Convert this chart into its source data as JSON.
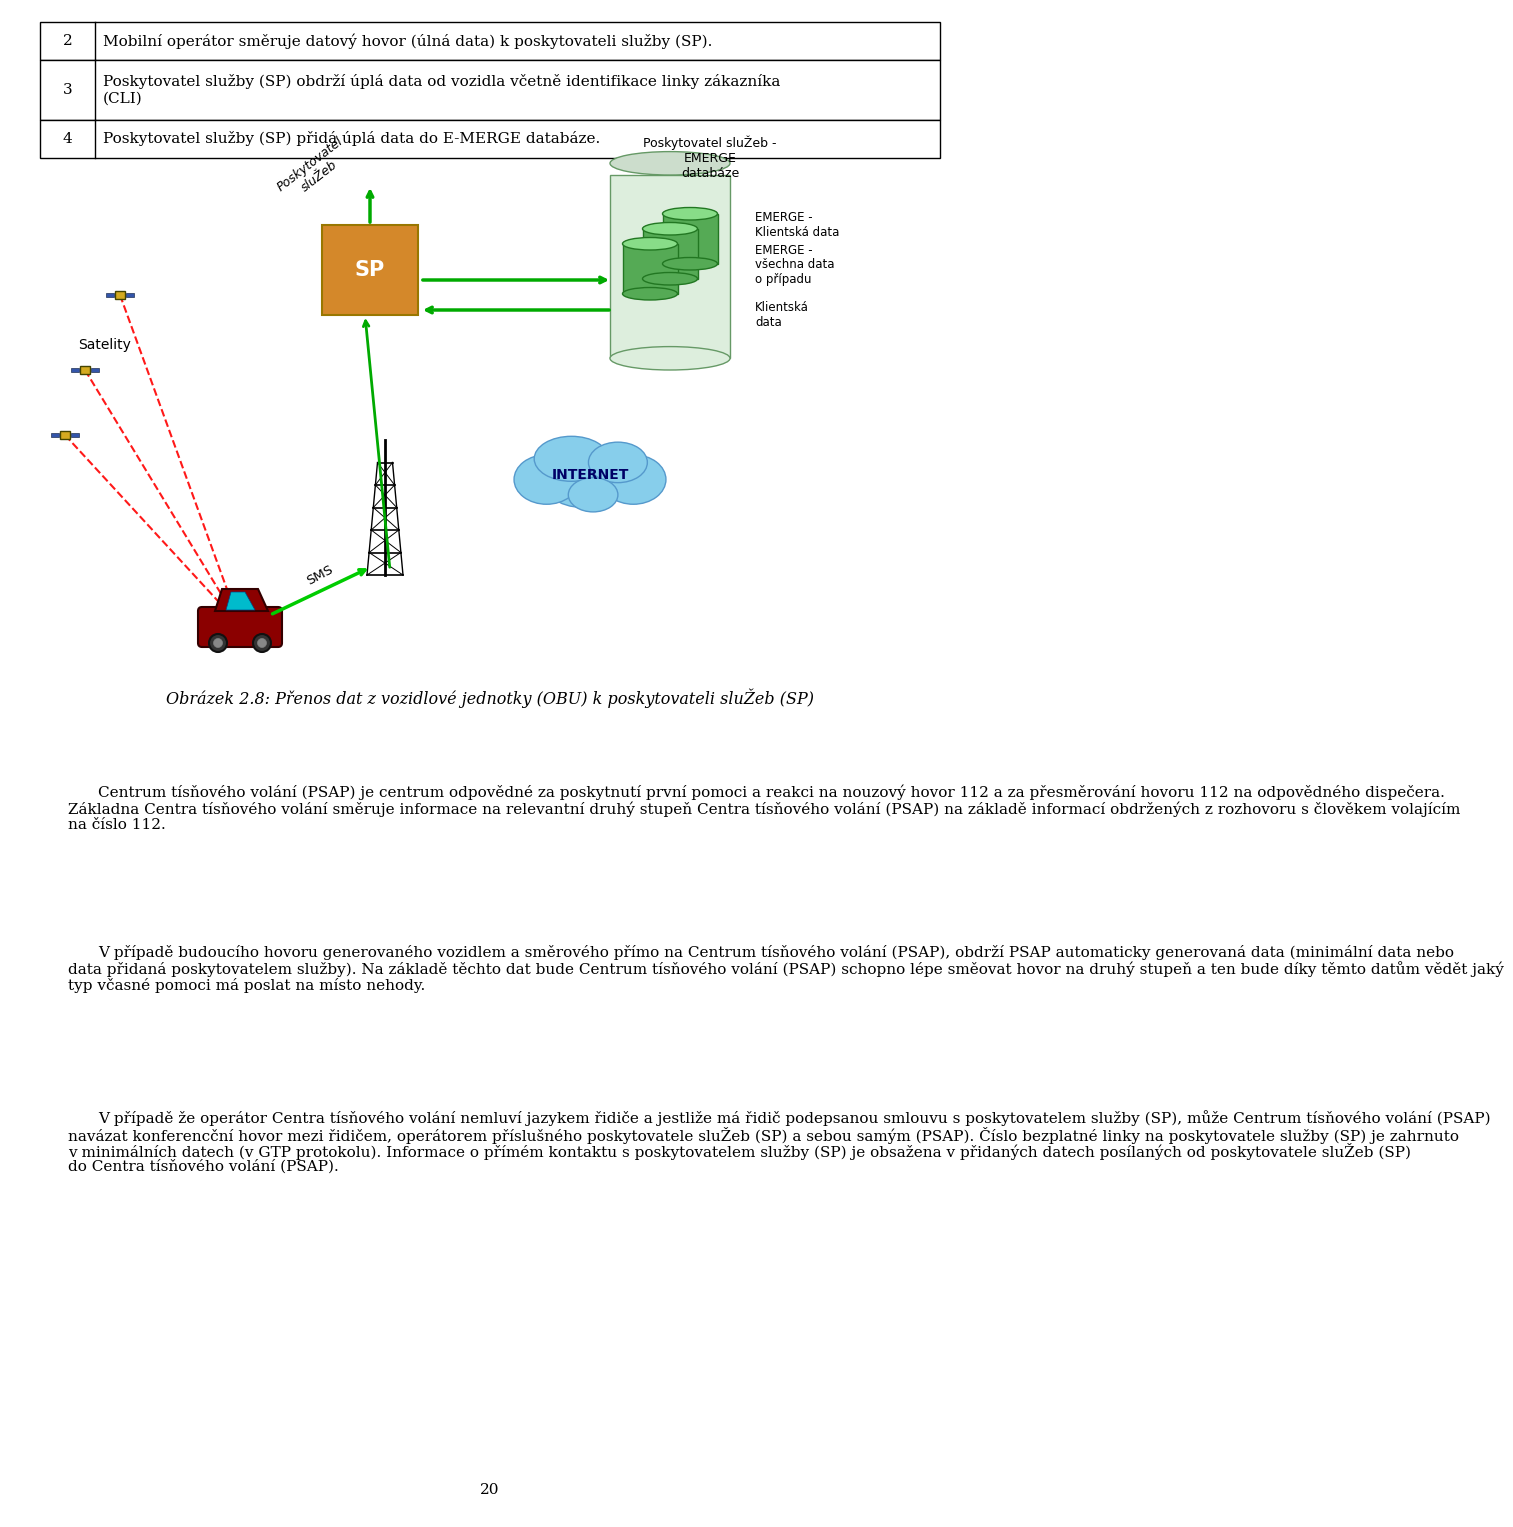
{
  "table_rows": [
    {
      "num": "2",
      "text": "Mobilní operátor směruje datový hovor (úlná data) k poskytovateli služby (SP)."
    },
    {
      "num": "3",
      "text": "Poskytovatel služby (SP) obdrží úplá data od vozidla včetně identifikace linky zákazníka\n(CLI)"
    },
    {
      "num": "4",
      "text": "Poskytovatel služby (SP) přidá úplá data do E-MERGE databáze."
    }
  ],
  "caption": "Obrázek 2.8: Přenos dat z vozidlové jednotky (OBU) k poskytovateli sluŽeb (SP)",
  "paragraph1": "Centrum tísňového volání (PSAP) je centrum odpovědné za poskytnutí první pomoci a reakci na nouzový hovor 112 a za přesměrování hovoru 112 na odpovědného dispečera.\nZákladna Centra tísňového volání směruje informace na relevantní druhý stupeň Centra tísňového volání (PSAP) na základě informací obdržených z rozhovoru s člověkem volajícím\nna číslo 112.",
  "paragraph2": "V případě budoucího hovoru generovaného vozidlem a směrového přímo na Centrum tísňového volání (PSAP), obdrží PSAP automaticky generovaná data (minimální data nebo\ndata přidaná poskytovatelem služby). Na základě těchto dat bude Centrum tísňového volání (PSAP) schopno lépe směovat hovor na druhý stupeň a ten bude díky těmto datům vědět jaký\ntyp včasné pomoci má poslat na místo nehody.",
  "paragraph3": "V případě že operátor Centra tísňového volání nemluví jazykem řidiče a jestliže má řidič podepsanou smlouvu s poskytovatelem služby (SP), může Centrum tísňového volání (PSAP)\nnavázat konferencční hovor mezi řidičem, operátorem příslušného poskytovatele sluŽeb (SP) a sebou samým (PSAP). Číslo bezplatné linky na poskytovatele služby (SP) je zahrnuto\nv minimálních datech (v GTP protokolu). Informace o přímém kontaktu s poskytovatelem služby (SP) je obsažena v přidaných datech posílaných od poskytovatele sluŽeb (SP)\ndo Centra tísňového volání (PSAP).",
  "page_number": "20",
  "bg_color": "#ffffff",
  "text_color": "#000000",
  "table_border_color": "#000000",
  "diagram_label_sp": "SP",
  "diagram_label_satelity": "Satelity",
  "diagram_label_internet": "INTERNET",
  "diagram_label_sms": "SMS",
  "diagram_label_poskytovatel": "Poskytovatel\nsluŽeb",
  "diagram_label_db_title": "Poskytovatel sluŽeb -\nEMERGE\ndatabáze",
  "diagram_label_emerge1": "EMERGE -\nKlientská data",
  "diagram_label_emerge2": "EMERGE -\nvšechna data\no případu",
  "diagram_label_klientska": "Klientská\ndata"
}
